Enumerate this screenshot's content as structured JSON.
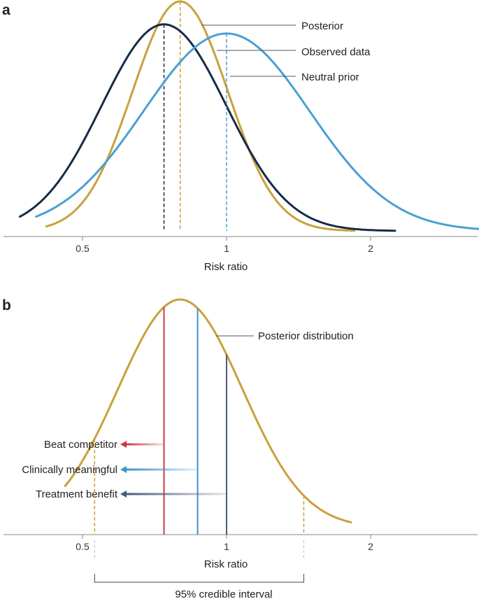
{
  "chart_data": [
    {
      "panel": "a",
      "type": "line",
      "xlabel": "Risk ratio",
      "x_scale": "log",
      "x_ticks": [
        0.5,
        1,
        2
      ],
      "x_tick_labels": [
        "0.5",
        "1",
        "2"
      ],
      "series": [
        {
          "name": "Posterior",
          "color": "#c9a13b",
          "mu": 0.8,
          "sigma": 0.23,
          "peak": 1.0,
          "x_range": [
            0.42,
            1.85
          ],
          "dashed_at": 0.8
        },
        {
          "name": "Observed data",
          "color": "#162b45",
          "mu": 0.74,
          "sigma": 0.3,
          "peak": 0.9,
          "x_range": [
            0.37,
            2.25
          ],
          "dashed_at": 0.74
        },
        {
          "name": "Neutral prior",
          "color": "#4a9fd4",
          "mu": 1.0,
          "sigma": 0.4,
          "peak": 0.86,
          "x_range": [
            0.4,
            3.5
          ],
          "dashed_at": 1.0
        }
      ],
      "labels": [
        "Posterior",
        "Observed data",
        "Neutral prior"
      ]
    },
    {
      "panel": "b",
      "type": "line",
      "xlabel": "Risk ratio",
      "x_scale": "log",
      "x_ticks": [
        0.5,
        1,
        2
      ],
      "x_tick_labels": [
        "0.5",
        "1",
        "2"
      ],
      "series": [
        {
          "name": "Posterior distribution",
          "color": "#c9a13b",
          "mu": 0.8,
          "sigma": 0.3,
          "peak": 1.0,
          "x_range": [
            0.46,
            1.82
          ]
        }
      ],
      "credible_interval": {
        "label": "95% credible interval",
        "lower": 0.53,
        "upper": 1.45
      },
      "thresholds": [
        {
          "label": "Beat competitor",
          "value": 0.74,
          "color": "#cc3b3b"
        },
        {
          "label": "Clinically meaningful",
          "value": 0.87,
          "color": "#3b93cf"
        },
        {
          "label": "Treatment benefit",
          "value": 1.0,
          "color": "#4a5a7a"
        }
      ]
    }
  ]
}
